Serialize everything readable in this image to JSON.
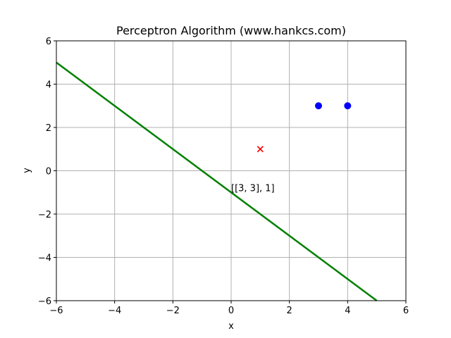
{
  "chart_data": {
    "type": "scatter",
    "title": "Perceptron Algorithm (www.hankcs.com)",
    "xlabel": "x",
    "ylabel": "y",
    "xlim": [
      -6,
      6
    ],
    "ylim": [
      -6,
      6
    ],
    "xticks": [
      -6,
      -4,
      -2,
      0,
      2,
      4,
      6
    ],
    "yticks": [
      -6,
      -4,
      -2,
      0,
      2,
      4,
      6
    ],
    "grid": true,
    "series": [
      {
        "marker": "circle",
        "color": "#0000ff",
        "points": [
          {
            "x": 3,
            "y": 3
          },
          {
            "x": 4,
            "y": 3
          }
        ]
      },
      {
        "marker": "x",
        "color": "#ff0000",
        "points": [
          {
            "x": 1,
            "y": 1
          }
        ]
      },
      {
        "kind": "line",
        "color": "#008000",
        "points": [
          {
            "x": -6,
            "y": 5
          },
          {
            "x": 5,
            "y": -6
          }
        ]
      }
    ],
    "annotations": [
      {
        "text": "[[3, 3], 1]",
        "x": 0,
        "y": -1
      }
    ]
  }
}
